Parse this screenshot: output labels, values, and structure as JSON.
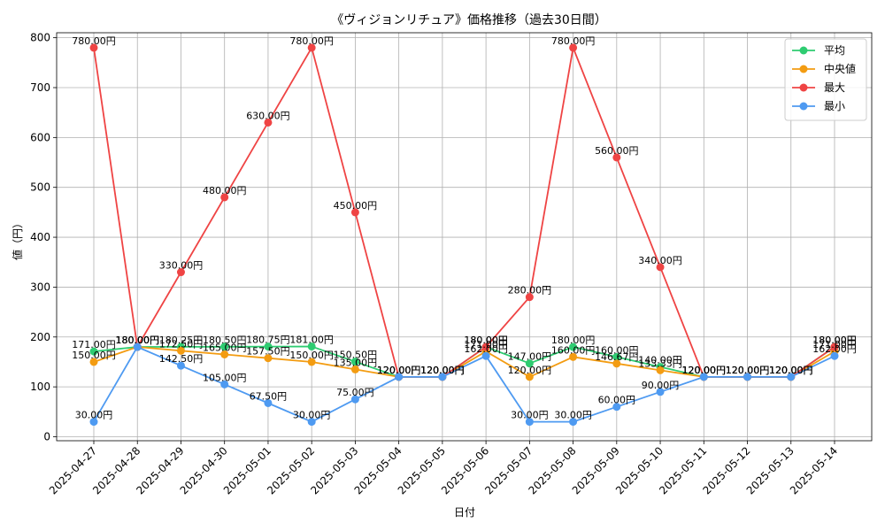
{
  "chart_data": {
    "type": "line",
    "title": "《ヴィジョンリチュア》価格推移（過去30日間）",
    "xlabel": "日付",
    "ylabel": "値（円）",
    "ylim": [
      -8,
      810
    ],
    "yticks": [
      0,
      100,
      200,
      300,
      400,
      500,
      600,
      700,
      800
    ],
    "grid": true,
    "legend_position": "top-right",
    "categories": [
      "2025-04-27",
      "2025-04-28",
      "2025-04-29",
      "2025-04-30",
      "2025-05-01",
      "2025-05-02",
      "2025-05-03",
      "2025-05-04",
      "2025-05-05",
      "2025-05-06",
      "2025-05-07",
      "2025-05-08",
      "2025-05-09",
      "2025-05-10",
      "2025-05-11",
      "2025-05-12",
      "2025-05-13",
      "2025-05-14"
    ],
    "series": [
      {
        "name": "平均",
        "color": "#2ecc71",
        "values": [
          171.0,
          180.0,
          180.25,
          180.5,
          180.75,
          181.0,
          150.5,
          120.0,
          120.0,
          180.0,
          147.0,
          180.0,
          160.0,
          140.0,
          120.0,
          120.0,
          120.0,
          180.0
        ],
        "labels": [
          "171.00円",
          "180.00円",
          "180.25円",
          "180.50円",
          "180.75円",
          "181.00円",
          "150.50円",
          "120.00円",
          "120.00円",
          "180.00円",
          "147.00円",
          "180.00円",
          "160.00円",
          "140.00円",
          "120.00円",
          "120.00円",
          "120.00円",
          "180.00円"
        ]
      },
      {
        "name": "中央値",
        "color": "#f39c12",
        "values": [
          150.0,
          180.0,
          172.5,
          165.0,
          157.5,
          150.0,
          135.0,
          120.0,
          120.0,
          171.0,
          120.0,
          160.0,
          146.67,
          133.33,
          120.0,
          120.0,
          120.0,
          171.0
        ],
        "labels": [
          "150.00円",
          "180.00円",
          "172.50円",
          "165.00円",
          "157.50円",
          "150.00円",
          "135.00円",
          "120.00円",
          "120.00円",
          "171.00円",
          "120.00円",
          "160.00円",
          "146.67円",
          "133.33円",
          "120.00円",
          "120.00円",
          "120.00円",
          "171.00円"
        ]
      },
      {
        "name": "最大",
        "color": "#ef4444",
        "values": [
          780.0,
          180.0,
          330.0,
          480.0,
          630.0,
          780.0,
          450.0,
          120.0,
          120.0,
          180.0,
          280.0,
          780.0,
          560.0,
          340.0,
          120.0,
          120.0,
          120.0,
          180.0
        ],
        "labels": [
          "780.00円",
          "180.00円",
          "330.00円",
          "480.00円",
          "630.00円",
          "780.00円",
          "450.00円",
          "120.00円",
          "120.00円",
          "180.00円",
          "280.00円",
          "780.00円",
          "560.00円",
          "340.00円",
          "120.00円",
          "120.00円",
          "120.00円",
          "180.00円"
        ]
      },
      {
        "name": "最小",
        "color": "#4e9af1",
        "values": [
          30.0,
          180.0,
          142.5,
          105.0,
          67.5,
          30.0,
          75.0,
          120.0,
          120.0,
          162.0,
          30.0,
          30.0,
          60.0,
          90.0,
          120.0,
          120.0,
          120.0,
          162.0
        ],
        "labels": [
          "30.00円",
          "180.00円",
          "142.50円",
          "105.00円",
          "67.50円",
          "30.00円",
          "75.00円",
          "120.00円",
          "120.00円",
          "162.00円",
          "30.00円",
          "30.00円",
          "60.00円",
          "90.00円",
          "120.00円",
          "120.00円",
          "120.00円",
          "162.00円"
        ]
      }
    ]
  }
}
